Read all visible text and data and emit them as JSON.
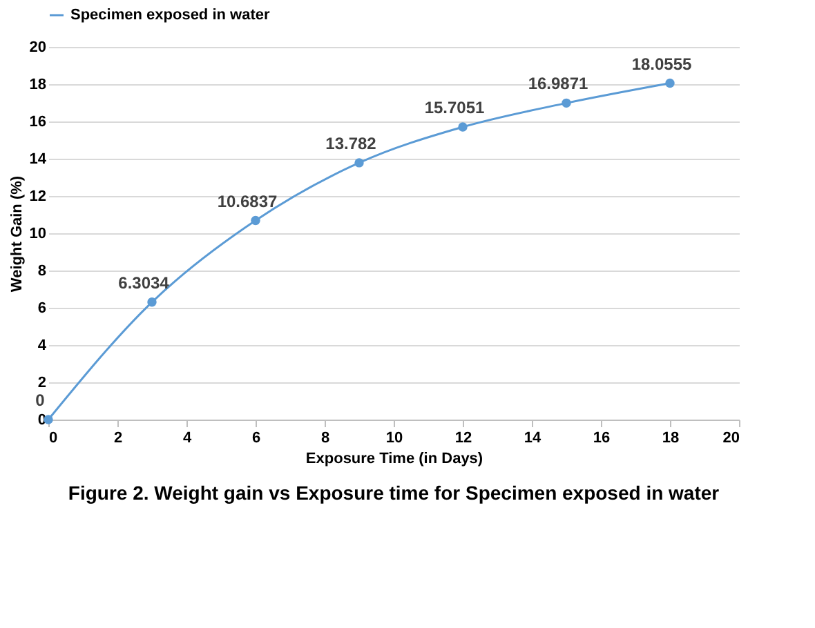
{
  "chart_data": {
    "type": "line",
    "xlabel": "Exposure Time (in Days)",
    "ylabel": "Weight Gain (%)",
    "x": [
      0,
      3,
      6,
      9,
      12,
      15,
      18
    ],
    "series": [
      {
        "name": "Specimen exposed in water",
        "color": "#5b9bd5",
        "values": [
          0,
          6.3034,
          10.6837,
          13.782,
          15.7051,
          16.9871,
          18.0555
        ]
      }
    ],
    "xlim": [
      0,
      20
    ],
    "xticks": [
      0,
      2,
      4,
      6,
      8,
      10,
      12,
      14,
      16,
      18,
      20
    ],
    "ylim": [
      0,
      20
    ],
    "yticks": [
      0,
      2,
      4,
      6,
      8,
      10,
      12,
      14,
      16,
      18,
      20
    ],
    "grid": "y",
    "legend": "top",
    "marker": "circle",
    "line_style": "solid",
    "data_labels": true,
    "annotations": [
      "Figure 2. Weight gain vs Exposure time for Specimen exposed in water"
    ]
  }
}
